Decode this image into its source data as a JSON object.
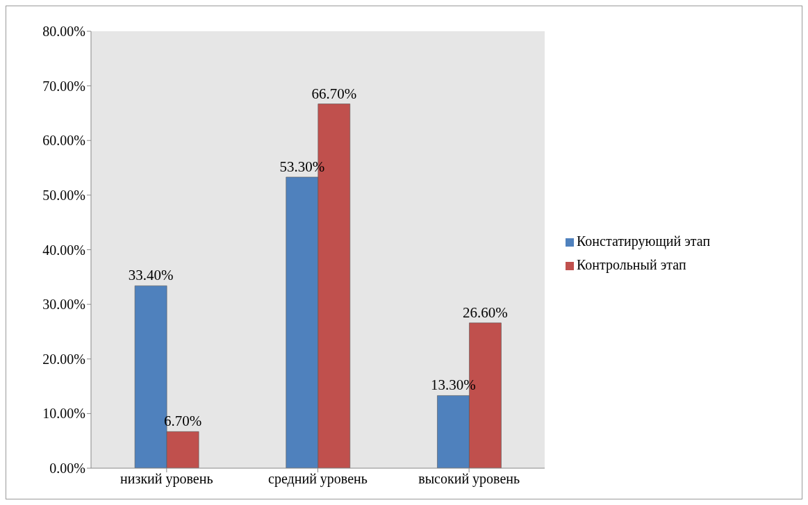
{
  "chart_data": {
    "type": "bar",
    "categories": [
      "низкий уровень",
      "средний уровень",
      "высокий уровень"
    ],
    "series": [
      {
        "name": "Констатирующий этап",
        "color": "#4f81bd",
        "values": [
          33.4,
          53.3,
          13.3
        ],
        "value_labels": [
          "33.40%",
          "53.30%",
          "13.30%"
        ]
      },
      {
        "name": "Контрольный этап",
        "color": "#c0504d",
        "values": [
          6.7,
          66.7,
          26.6
        ],
        "value_labels": [
          "6.70%",
          "66.70%",
          "26.60%"
        ]
      }
    ],
    "ylim": [
      0,
      80
    ],
    "yticks": [
      {
        "value": 0,
        "label": "0.00%"
      },
      {
        "value": 10,
        "label": "10.00%"
      },
      {
        "value": 20,
        "label": "20.00%"
      },
      {
        "value": 30,
        "label": "30.00%"
      },
      {
        "value": 40,
        "label": "40.00%"
      },
      {
        "value": 50,
        "label": "50.00%"
      },
      {
        "value": 60,
        "label": "60.00%"
      },
      {
        "value": 70,
        "label": "70.00%"
      },
      {
        "value": 80,
        "label": "80.00%"
      }
    ],
    "legend": "right"
  }
}
